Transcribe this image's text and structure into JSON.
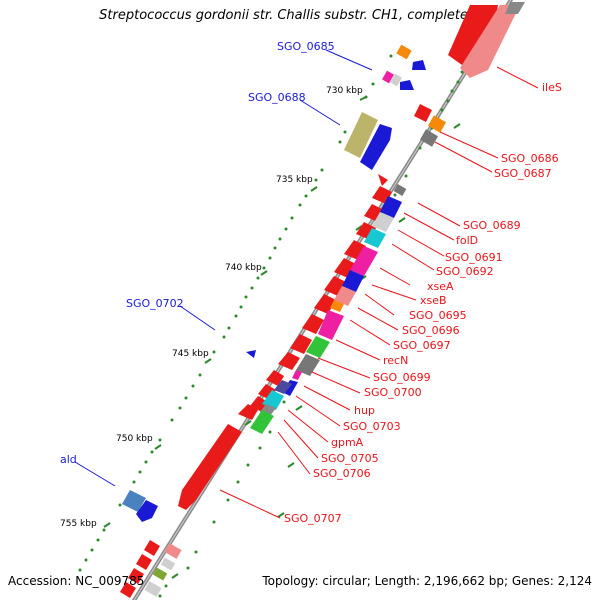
{
  "title": "Streptococcus gordonii str. Challis substr. CH1, complete ge...",
  "footer": {
    "accession": "Accession: NC_009785",
    "topology": "Topology: circular; Length: 2,196,662 bp; Genes: 2,124"
  },
  "scale_labels": [
    "730 kbp",
    "735 kbp",
    "740 kbp",
    "745 kbp",
    "750 kbp",
    "755 kbp"
  ],
  "gene_labels": [
    {
      "text": "SGO_0685",
      "color": "#1a1ad6"
    },
    {
      "text": "SGO_0688",
      "color": "#1a1ad6"
    },
    {
      "text": "SGO_0702",
      "color": "#1a1ad6"
    },
    {
      "text": "ald",
      "color": "#1a1ad6"
    },
    {
      "text": "ileS",
      "color": "#e8141b"
    },
    {
      "text": "SGO_0686",
      "color": "#e8141b"
    },
    {
      "text": "SGO_0687",
      "color": "#e8141b"
    },
    {
      "text": "SGO_0689",
      "color": "#e8141b"
    },
    {
      "text": "folD",
      "color": "#e8141b"
    },
    {
      "text": "SGO_0691",
      "color": "#e8141b"
    },
    {
      "text": "SGO_0692",
      "color": "#e8141b"
    },
    {
      "text": "xseA",
      "color": "#e8141b"
    },
    {
      "text": "xseB",
      "color": "#e8141b"
    },
    {
      "text": "SGO_0695",
      "color": "#e8141b"
    },
    {
      "text": "SGO_0696",
      "color": "#e8141b"
    },
    {
      "text": "SGO_0697",
      "color": "#e8141b"
    },
    {
      "text": "recN",
      "color": "#e8141b"
    },
    {
      "text": "SGO_0699",
      "color": "#e8141b"
    },
    {
      "text": "SGO_0700",
      "color": "#e8141b"
    },
    {
      "text": "hup",
      "color": "#e8141b"
    },
    {
      "text": "SGO_0703",
      "color": "#e8141b"
    },
    {
      "text": "gpmA",
      "color": "#e8141b"
    },
    {
      "text": "SGO_0705",
      "color": "#e8141b"
    },
    {
      "text": "SGO_0706",
      "color": "#e8141b"
    },
    {
      "text": "SGO_0707",
      "color": "#e8141b"
    }
  ],
  "colors": {
    "forward_strand": "#1a1ad6",
    "reverse_strand": "#e8141b",
    "backbone": "#8a8a8a",
    "gc_skew_dots": "#2a8a2a"
  }
}
